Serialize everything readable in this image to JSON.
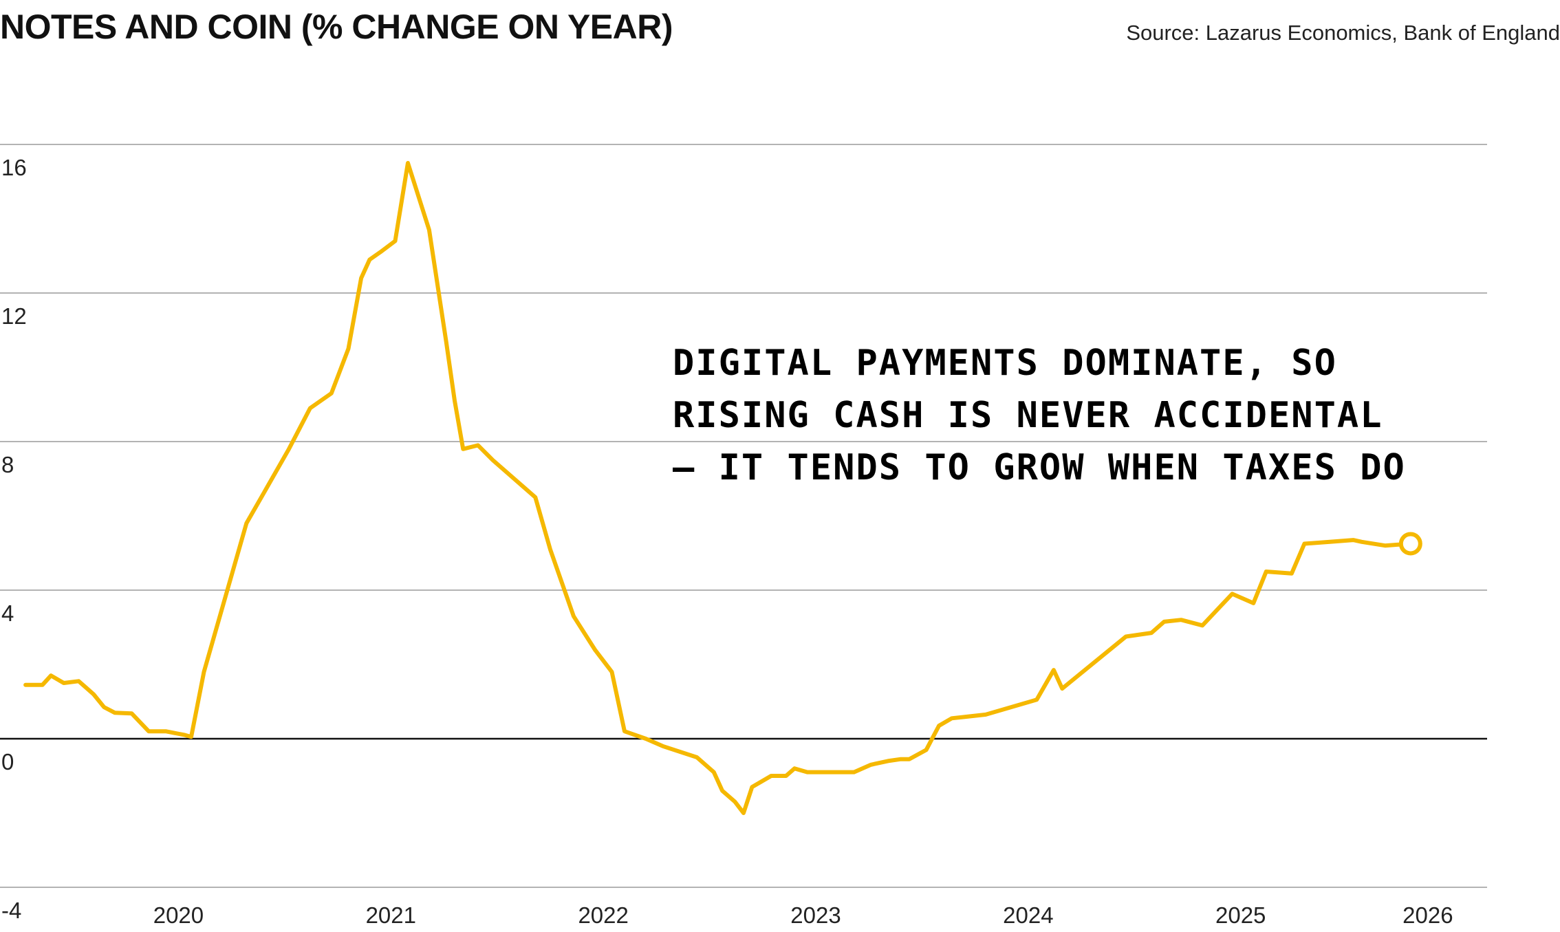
{
  "header": {
    "title": "NOTES AND COIN (% CHANGE ON YEAR)",
    "source": "Source: Lazarus Economics, Bank of England"
  },
  "annotation": {
    "lines": [
      "DIGITAL PAYMENTS DOMINATE, SO",
      "RISING CASH IS NEVER ACCIDENTAL",
      "— IT TENDS TO GROW WHEN TAXES DO"
    ]
  },
  "colors": {
    "line": "#F5B800",
    "grid": "#9a9a9a",
    "zero_line": "#111111"
  },
  "chart_data": {
    "type": "line",
    "title": "NOTES AND COIN (% CHANGE ON YEAR)",
    "xlabel": "",
    "ylabel": "",
    "xlim": [
      2019.16,
      2026.16
    ],
    "ylim": [
      -4,
      16
    ],
    "y_ticks": [
      -4,
      0,
      4,
      8,
      12,
      16
    ],
    "x_ticks": [
      2020,
      2021,
      2022,
      2023,
      2024,
      2025,
      2026
    ],
    "grid": true,
    "legend": "none",
    "series": [
      {
        "x": [
          2019.28,
          2019.36,
          2019.4,
          2019.46,
          2019.53,
          2019.6,
          2019.65,
          2019.7,
          2019.78,
          2019.86,
          2019.94,
          2020.03,
          2020.06,
          2020.12,
          2020.22,
          2020.32,
          2020.42,
          2020.52,
          2020.62,
          2020.72,
          2020.8,
          2020.86,
          2020.9,
          2020.95,
          2021.02,
          2021.08,
          2021.18,
          2021.26,
          2021.3,
          2021.34,
          2021.41,
          2021.48,
          2021.58,
          2021.68,
          2021.75,
          2021.86,
          2021.96,
          2022.04,
          2022.1,
          2022.2,
          2022.28,
          2022.44,
          2022.52,
          2022.56,
          2022.62,
          2022.66,
          2022.7,
          2022.79,
          2022.86,
          2022.9,
          2022.96,
          2023.18,
          2023.26,
          2023.34,
          2023.4,
          2023.44,
          2023.52,
          2023.58,
          2023.64,
          2023.72,
          2023.8,
          2024.04,
          2024.12,
          2024.16,
          2024.46,
          2024.58,
          2024.64,
          2024.72,
          2024.82,
          2024.96,
          2025.06,
          2025.12,
          2025.24,
          2025.3,
          2025.42,
          2025.53,
          2025.57,
          2025.68,
          2025.8
        ],
        "y": [
          1.45,
          1.45,
          1.7,
          1.5,
          1.55,
          1.2,
          0.85,
          0.7,
          0.68,
          0.2,
          0.2,
          0.1,
          0.05,
          1.8,
          3.8,
          5.8,
          6.8,
          7.8,
          8.9,
          9.3,
          10.5,
          12.4,
          12.9,
          13.1,
          13.4,
          15.5,
          13.7,
          10.7,
          9.1,
          7.8,
          7.9,
          7.5,
          7.0,
          6.5,
          5.1,
          3.3,
          2.4,
          1.8,
          0.2,
          0.0,
          -0.2,
          -0.5,
          -0.9,
          -1.4,
          -1.7,
          -2.0,
          -1.3,
          -1.0,
          -1.0,
          -0.8,
          -0.9,
          -0.9,
          -0.7,
          -0.6,
          -0.55,
          -0.55,
          -0.3,
          0.35,
          0.55,
          0.6,
          0.65,
          1.05,
          1.85,
          1.35,
          2.75,
          2.85,
          3.15,
          3.2,
          3.05,
          3.9,
          3.65,
          4.5,
          4.45,
          5.25,
          5.3,
          5.35,
          5.3,
          5.2,
          5.25
        ]
      }
    ]
  }
}
